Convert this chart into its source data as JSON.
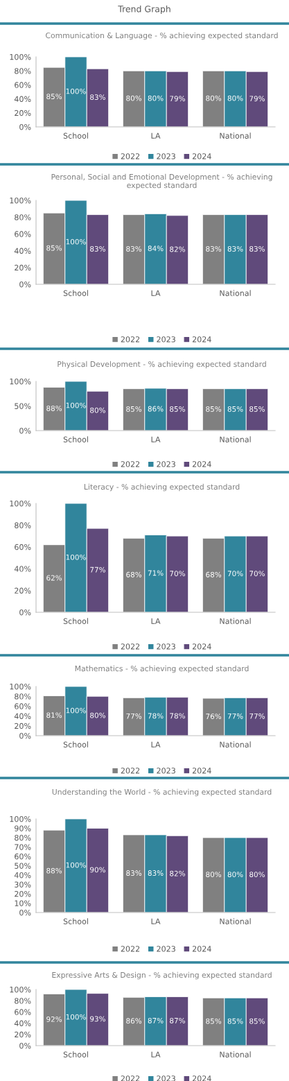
{
  "chart_data": [
    {
      "type": "bar",
      "title": "Communication & Language - % achieving expected standard",
      "annotations": [
        "Trend Graph"
      ],
      "categories": [
        "School",
        "LA",
        "National"
      ],
      "series": [
        {
          "name": "2022",
          "color": "#808080",
          "values": [
            85,
            80,
            80
          ],
          "value_labels": [
            "85%",
            "80%",
            "80%"
          ]
        },
        {
          "name": "2023",
          "color": "#31859c",
          "values": [
            100,
            80,
            80
          ],
          "value_labels": [
            "100%",
            "80%",
            "80%"
          ]
        },
        {
          "name": "2024",
          "color": "#604a7b",
          "values": [
            83,
            79,
            79
          ],
          "value_labels": [
            "83%",
            "79%",
            "79%"
          ]
        }
      ],
      "ylim": [
        0,
        100
      ],
      "yticks": [
        {
          "value": 0,
          "label": "0%"
        },
        {
          "value": 20,
          "label": "20%"
        },
        {
          "value": 40,
          "label": "40%"
        },
        {
          "value": 60,
          "label": "60%"
        },
        {
          "value": 80,
          "label": "80%"
        },
        {
          "value": 100,
          "label": "100%"
        }
      ],
      "legend": "bottom",
      "grid": false
    },
    {
      "type": "bar",
      "title": "Personal, Social and Emotional Development - % achieving expected standard",
      "categories": [
        "School",
        "LA",
        "National"
      ],
      "series": [
        {
          "name": "2022",
          "color": "#808080",
          "values": [
            85,
            83,
            83
          ],
          "value_labels": [
            "85%",
            "83%",
            "83%"
          ]
        },
        {
          "name": "2023",
          "color": "#31859c",
          "values": [
            100,
            84,
            83
          ],
          "value_labels": [
            "100%",
            "84%",
            "83%"
          ]
        },
        {
          "name": "2024",
          "color": "#604a7b",
          "values": [
            83,
            82,
            83
          ],
          "value_labels": [
            "83%",
            "82%",
            "83%"
          ]
        }
      ],
      "ylim": [
        0,
        100
      ],
      "yticks": [
        {
          "value": 0,
          "label": "0%"
        },
        {
          "value": 20,
          "label": "20%"
        },
        {
          "value": 40,
          "label": "40%"
        },
        {
          "value": 60,
          "label": "60%"
        },
        {
          "value": 80,
          "label": "80%"
        },
        {
          "value": 100,
          "label": "100%"
        }
      ],
      "legend": "bottom",
      "grid": false
    },
    {
      "type": "bar",
      "title": "Physical Development - % achieving expected standard",
      "categories": [
        "School",
        "LA",
        "National"
      ],
      "series": [
        {
          "name": "2022",
          "color": "#808080",
          "values": [
            88,
            85,
            85
          ],
          "value_labels": [
            "88%",
            "85%",
            "85%"
          ]
        },
        {
          "name": "2023",
          "color": "#31859c",
          "values": [
            100,
            86,
            85
          ],
          "value_labels": [
            "100%",
            "86%",
            "85%"
          ]
        },
        {
          "name": "2024",
          "color": "#604a7b",
          "values": [
            80,
            85,
            85
          ],
          "value_labels": [
            "80%",
            "85%",
            "85%"
          ]
        }
      ],
      "ylim": [
        0,
        100
      ],
      "yticks": [
        {
          "value": 0,
          "label": "0%"
        },
        {
          "value": 50,
          "label": "50%"
        },
        {
          "value": 100,
          "label": "100%"
        }
      ],
      "legend": "bottom",
      "grid": false
    },
    {
      "type": "bar",
      "title": "Literacy - % achieving expected standard",
      "categories": [
        "School",
        "LA",
        "National"
      ],
      "series": [
        {
          "name": "2022",
          "color": "#808080",
          "values": [
            62,
            68,
            68
          ],
          "value_labels": [
            "62%",
            "68%",
            "68%"
          ]
        },
        {
          "name": "2023",
          "color": "#31859c",
          "values": [
            100,
            71,
            70
          ],
          "value_labels": [
            "100%",
            "71%",
            "70%"
          ]
        },
        {
          "name": "2024",
          "color": "#604a7b",
          "values": [
            77,
            70,
            70
          ],
          "value_labels": [
            "77%",
            "70%",
            "70%"
          ]
        }
      ],
      "ylim": [
        0,
        100
      ],
      "yticks": [
        {
          "value": 0,
          "label": "0%"
        },
        {
          "value": 20,
          "label": "20%"
        },
        {
          "value": 40,
          "label": "40%"
        },
        {
          "value": 60,
          "label": "60%"
        },
        {
          "value": 80,
          "label": "80%"
        },
        {
          "value": 100,
          "label": "100%"
        }
      ],
      "legend": "bottom",
      "grid": false
    },
    {
      "type": "bar",
      "title": "Mathematics - % achieving expected standard",
      "categories": [
        "School",
        "LA",
        "National"
      ],
      "series": [
        {
          "name": "2022",
          "color": "#808080",
          "values": [
            81,
            77,
            76
          ],
          "value_labels": [
            "81%",
            "77%",
            "76%"
          ]
        },
        {
          "name": "2023",
          "color": "#31859c",
          "values": [
            100,
            78,
            77
          ],
          "value_labels": [
            "100%",
            "78%",
            "77%"
          ]
        },
        {
          "name": "2024",
          "color": "#604a7b",
          "values": [
            80,
            78,
            77
          ],
          "value_labels": [
            "80%",
            "78%",
            "77%"
          ]
        }
      ],
      "ylim": [
        0,
        100
      ],
      "yticks": [
        {
          "value": 0,
          "label": "0%"
        },
        {
          "value": 20,
          "label": "20%"
        },
        {
          "value": 40,
          "label": "40%"
        },
        {
          "value": 60,
          "label": "60%"
        },
        {
          "value": 80,
          "label": "80%"
        },
        {
          "value": 100,
          "label": "100%"
        }
      ],
      "legend": "bottom",
      "grid": false
    },
    {
      "type": "bar",
      "title": "Understanding the World - % achieving expected standard",
      "categories": [
        "School",
        "LA",
        "National"
      ],
      "series": [
        {
          "name": "2022",
          "color": "#808080",
          "values": [
            88,
            83,
            80
          ],
          "value_labels": [
            "88%",
            "83%",
            "80%"
          ]
        },
        {
          "name": "2023",
          "color": "#31859c",
          "values": [
            100,
            83,
            80
          ],
          "value_labels": [
            "100%",
            "83%",
            "80%"
          ]
        },
        {
          "name": "2024",
          "color": "#604a7b",
          "values": [
            90,
            82,
            80
          ],
          "value_labels": [
            "90%",
            "82%",
            "80%"
          ]
        }
      ],
      "ylim": [
        0,
        100
      ],
      "yticks": [
        {
          "value": 0,
          "label": "0%"
        },
        {
          "value": 10,
          "label": "10%"
        },
        {
          "value": 20,
          "label": "20%"
        },
        {
          "value": 30,
          "label": "30%"
        },
        {
          "value": 40,
          "label": "40%"
        },
        {
          "value": 50,
          "label": "50%"
        },
        {
          "value": 60,
          "label": "60%"
        },
        {
          "value": 70,
          "label": "70%"
        },
        {
          "value": 80,
          "label": "80%"
        },
        {
          "value": 90,
          "label": "90%"
        },
        {
          "value": 100,
          "label": "100%"
        }
      ],
      "legend": "bottom",
      "grid": false
    },
    {
      "type": "bar",
      "title": "Expressive Arts & Design - % achieving expected standard",
      "categories": [
        "School",
        "LA",
        "National"
      ],
      "series": [
        {
          "name": "2022",
          "color": "#808080",
          "values": [
            92,
            86,
            85
          ],
          "value_labels": [
            "92%",
            "86%",
            "85%"
          ]
        },
        {
          "name": "2023",
          "color": "#31859c",
          "values": [
            100,
            87,
            85
          ],
          "value_labels": [
            "100%",
            "87%",
            "85%"
          ]
        },
        {
          "name": "2024",
          "color": "#604a7b",
          "values": [
            93,
            87,
            85
          ],
          "value_labels": [
            "93%",
            "87%",
            "85%"
          ]
        }
      ],
      "ylim": [
        0,
        100
      ],
      "yticks": [
        {
          "value": 0,
          "label": "0%"
        },
        {
          "value": 20,
          "label": "20%"
        },
        {
          "value": 40,
          "label": "40%"
        },
        {
          "value": 60,
          "label": "60%"
        },
        {
          "value": 80,
          "label": "80%"
        },
        {
          "value": 100,
          "label": "100%"
        }
      ],
      "legend": "bottom",
      "grid": false
    }
  ]
}
